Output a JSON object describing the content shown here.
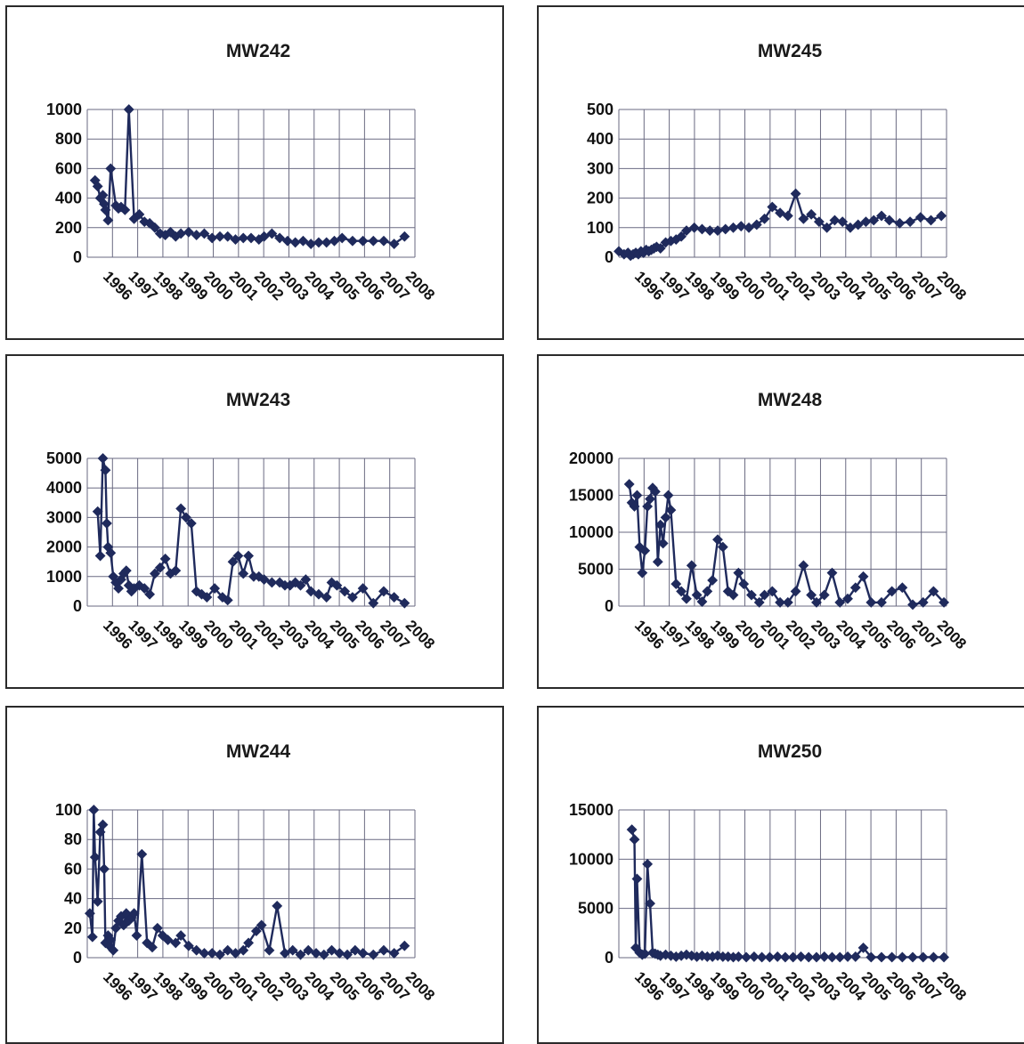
{
  "colors": {
    "line": "#1f2a5c",
    "grid": "#6a6a82",
    "frame": "#2a2a2a"
  },
  "x_labels": [
    "1996",
    "1997",
    "1998",
    "1999",
    "2000",
    "2001",
    "2002",
    "2003",
    "2004",
    "2005",
    "2006",
    "2007",
    "2008"
  ],
  "chart_data": [
    {
      "type": "line",
      "title": "MW242",
      "xlabel": "",
      "ylabel": "",
      "ylim": [
        0,
        1000
      ],
      "yticks": [
        0,
        200,
        400,
        600,
        800,
        1000
      ],
      "x": [
        1995.7,
        1995.8,
        1995.9,
        1996.0,
        1996.05,
        1996.1,
        1996.2,
        1996.3,
        1996.5,
        1996.6,
        1996.7,
        1996.85,
        1997.0,
        1997.2,
        1997.4,
        1997.6,
        1997.8,
        1998.0,
        1998.2,
        1998.4,
        1998.6,
        1998.8,
        1999.0,
        1999.3,
        1999.6,
        1999.9,
        2000.2,
        2000.5,
        2000.8,
        2001.1,
        2001.4,
        2001.7,
        2002.0,
        2002.2,
        2002.5,
        2002.8,
        2003.1,
        2003.4,
        2003.7,
        2004.0,
        2004.3,
        2004.6,
        2004.9,
        2005.2,
        2005.6,
        2006.0,
        2006.4,
        2006.8,
        2007.2,
        2007.6
      ],
      "y": [
        520,
        480,
        400,
        420,
        360,
        320,
        250,
        600,
        350,
        330,
        340,
        320,
        1000,
        260,
        290,
        240,
        230,
        200,
        160,
        150,
        170,
        140,
        160,
        170,
        150,
        160,
        130,
        140,
        140,
        120,
        130,
        130,
        120,
        140,
        160,
        130,
        110,
        100,
        110,
        90,
        100,
        100,
        110,
        130,
        110,
        110,
        110,
        110,
        90,
        140
      ]
    },
    {
      "type": "line",
      "title": "MW245",
      "xlabel": "",
      "ylabel": "",
      "ylim": [
        0,
        500
      ],
      "yticks": [
        0,
        100,
        200,
        300,
        400,
        500
      ],
      "x": [
        1995.4,
        1995.6,
        1995.75,
        1995.85,
        1995.95,
        1996.05,
        1996.15,
        1996.25,
        1996.35,
        1996.45,
        1996.55,
        1996.65,
        1996.75,
        1996.85,
        1997.0,
        1997.2,
        1997.4,
        1997.6,
        1997.8,
        1998.0,
        1998.3,
        1998.6,
        1998.9,
        1999.2,
        1999.5,
        1999.8,
        2000.1,
        2000.4,
        2000.7,
        2001.0,
        2001.3,
        2001.6,
        2001.9,
        2002.2,
        2002.5,
        2002.8,
        2003.1,
        2003.4,
        2003.7,
        2004.0,
        2004.3,
        2004.6,
        2004.9,
        2005.2,
        2005.5,
        2005.8,
        2006.2,
        2006.6,
        2007.0,
        2007.4,
        2007.8
      ],
      "y": [
        20,
        10,
        15,
        5,
        10,
        15,
        10,
        20,
        15,
        25,
        20,
        25,
        30,
        35,
        30,
        50,
        55,
        60,
        70,
        90,
        100,
        95,
        90,
        90,
        95,
        100,
        105,
        100,
        110,
        130,
        170,
        150,
        140,
        215,
        130,
        145,
        120,
        100,
        125,
        120,
        100,
        110,
        120,
        125,
        140,
        125,
        115,
        120,
        135,
        125,
        140
      ]
    },
    {
      "type": "line",
      "title": "MW243",
      "xlabel": "",
      "ylabel": "",
      "ylim": [
        0,
        5000
      ],
      "yticks": [
        0,
        1000,
        2000,
        3000,
        4000,
        5000
      ],
      "x": [
        1995.8,
        1995.9,
        1996.0,
        1996.1,
        1996.15,
        1996.2,
        1996.3,
        1996.4,
        1996.5,
        1996.6,
        1996.7,
        1996.8,
        1996.9,
        1997.0,
        1997.1,
        1997.2,
        1997.4,
        1997.6,
        1997.8,
        1998.0,
        1998.2,
        1998.4,
        1998.6,
        1998.8,
        1999.0,
        1999.2,
        1999.4,
        1999.6,
        1999.8,
        2000.0,
        2000.3,
        2000.6,
        2000.8,
        2001.0,
        2001.2,
        2001.4,
        2001.6,
        2001.8,
        2002.0,
        2002.2,
        2002.5,
        2002.8,
        2003.0,
        2003.2,
        2003.4,
        2003.6,
        2003.8,
        2004.0,
        2004.3,
        2004.6,
        2004.8,
        2005.0,
        2005.3,
        2005.6,
        2006.0,
        2006.4,
        2006.8,
        2007.2,
        2007.6
      ],
      "y": [
        3200,
        1700,
        5000,
        4600,
        2800,
        2000,
        1800,
        1000,
        800,
        600,
        900,
        1100,
        1200,
        700,
        500,
        600,
        700,
        600,
        400,
        1100,
        1300,
        1600,
        1100,
        1200,
        3300,
        3000,
        2800,
        500,
        400,
        300,
        600,
        300,
        200,
        1500,
        1700,
        1100,
        1700,
        1000,
        1000,
        900,
        800,
        800,
        700,
        700,
        800,
        700,
        900,
        500,
        400,
        300,
        800,
        700,
        500,
        300,
        600,
        100,
        500,
        300,
        100
      ]
    },
    {
      "type": "line",
      "title": "MW248",
      "xlabel": "",
      "ylabel": "",
      "ylim": [
        0,
        20000
      ],
      "yticks": [
        0,
        5000,
        10000,
        15000,
        20000
      ],
      "x": [
        1995.8,
        1995.9,
        1996.0,
        1996.1,
        1996.2,
        1996.3,
        1996.4,
        1996.5,
        1996.6,
        1996.7,
        1996.8,
        1996.9,
        1997.0,
        1997.1,
        1997.2,
        1997.3,
        1997.4,
        1997.6,
        1997.8,
        1998.0,
        1998.2,
        1998.4,
        1998.6,
        1998.8,
        1999.0,
        1999.2,
        1999.4,
        1999.6,
        1999.8,
        2000.0,
        2000.2,
        2000.5,
        2000.8,
        2001.0,
        2001.3,
        2001.6,
        2001.9,
        2002.2,
        2002.5,
        2002.8,
        2003.0,
        2003.3,
        2003.6,
        2003.9,
        2004.2,
        2004.5,
        2004.8,
        2005.1,
        2005.5,
        2005.9,
        2006.3,
        2006.7,
        2007.1,
        2007.5,
        2007.9
      ],
      "y": [
        16500,
        14000,
        13500,
        15000,
        8000,
        4500,
        7500,
        13500,
        14500,
        16000,
        15500,
        6000,
        11000,
        8500,
        12000,
        15000,
        13000,
        3000,
        2000,
        1000,
        5500,
        1500,
        600,
        2000,
        3500,
        9000,
        8000,
        2000,
        1500,
        4500,
        3000,
        1500,
        500,
        1500,
        2000,
        500,
        500,
        2000,
        5500,
        1500,
        500,
        1500,
        4500,
        500,
        1000,
        2500,
        4000,
        500,
        500,
        2000,
        2500,
        200,
        500,
        2000,
        500
      ]
    },
    {
      "type": "line",
      "title": "MW244",
      "xlabel": "",
      "ylabel": "",
      "ylim": [
        0,
        100
      ],
      "yticks": [
        0,
        20,
        40,
        60,
        80,
        100
      ],
      "x": [
        1995.5,
        1995.6,
        1995.65,
        1995.7,
        1995.8,
        1995.9,
        1996.0,
        1996.05,
        1996.1,
        1996.2,
        1996.25,
        1996.3,
        1996.4,
        1996.5,
        1996.6,
        1996.7,
        1996.8,
        1996.9,
        1997.0,
        1997.1,
        1997.2,
        1997.3,
        1997.5,
        1997.7,
        1997.9,
        1998.1,
        1998.3,
        1998.5,
        1998.8,
        1999.0,
        1999.3,
        1999.6,
        1999.9,
        2000.2,
        2000.5,
        2000.8,
        2001.1,
        2001.4,
        2001.6,
        2001.9,
        2002.1,
        2002.4,
        2002.7,
        2003.0,
        2003.3,
        2003.6,
        2003.9,
        2004.2,
        2004.5,
        2004.8,
        2005.1,
        2005.4,
        2005.7,
        2006.0,
        2006.4,
        2006.8,
        2007.2,
        2007.6
      ],
      "y": [
        30,
        14,
        100,
        68,
        38,
        85,
        90,
        60,
        10,
        15,
        8,
        12,
        5,
        20,
        25,
        28,
        22,
        30,
        25,
        27,
        30,
        15,
        70,
        10,
        7,
        20,
        15,
        12,
        10,
        15,
        8,
        5,
        3,
        3,
        2,
        5,
        3,
        5,
        10,
        18,
        22,
        5,
        35,
        3,
        5,
        2,
        5,
        3,
        2,
        5,
        3,
        2,
        5,
        3,
        2,
        5,
        3,
        8
      ]
    },
    {
      "type": "line",
      "title": "MW250",
      "xlabel": "",
      "ylabel": "",
      "ylim": [
        0,
        15000
      ],
      "yticks": [
        0,
        5000,
        10000,
        15000
      ],
      "x": [
        1995.9,
        1996.0,
        1996.05,
        1996.1,
        1996.2,
        1996.3,
        1996.4,
        1996.5,
        1996.6,
        1996.7,
        1996.8,
        1996.9,
        1997.0,
        1997.2,
        1997.4,
        1997.6,
        1997.8,
        1998.0,
        1998.2,
        1998.4,
        1998.6,
        1998.8,
        1999.0,
        1999.2,
        1999.4,
        1999.6,
        1999.8,
        2000.0,
        2000.3,
        2000.6,
        2000.9,
        2001.2,
        2001.5,
        2001.8,
        2002.1,
        2002.4,
        2002.7,
        2003.0,
        2003.3,
        2003.6,
        2003.9,
        2004.2,
        2004.5,
        2004.8,
        2005.1,
        2005.5,
        2005.9,
        2006.3,
        2006.7,
        2007.1,
        2007.5,
        2007.9
      ],
      "y": [
        13000,
        12000,
        1000,
        8000,
        500,
        300,
        400,
        9500,
        5500,
        500,
        400,
        300,
        200,
        300,
        200,
        100,
        200,
        300,
        200,
        100,
        200,
        100,
        100,
        200,
        100,
        100,
        50,
        100,
        50,
        100,
        50,
        50,
        100,
        50,
        50,
        100,
        50,
        50,
        100,
        50,
        50,
        100,
        100,
        1000,
        50,
        50,
        50,
        50,
        50,
        50,
        50,
        50
      ]
    }
  ]
}
